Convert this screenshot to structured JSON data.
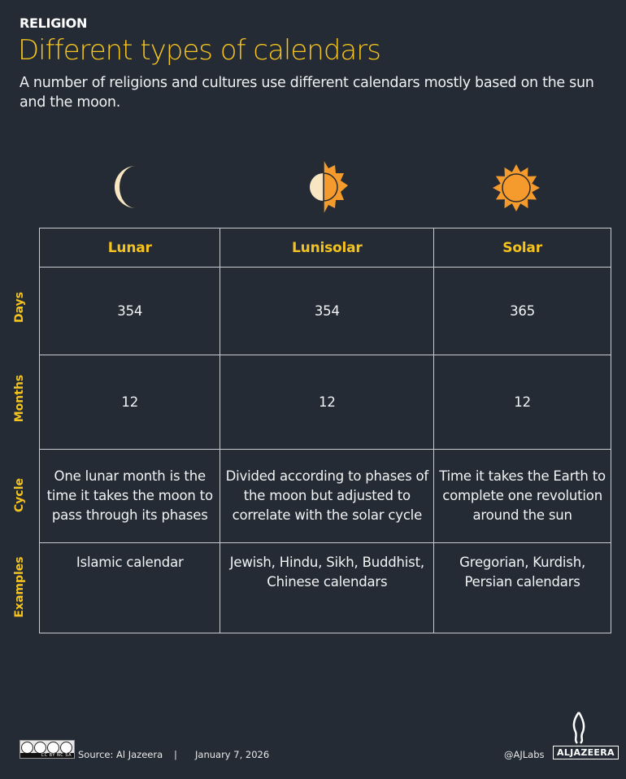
{
  "header": {
    "kicker": "RELIGION",
    "title": "Different types of calendars",
    "subtitle": "A number of religions and cultures use different calendars mostly based on the sun and the moon."
  },
  "colors": {
    "background": "#252b34",
    "accent": "#f4c31f",
    "sun": "#f59b2d",
    "moon": "#f8e6c2"
  },
  "table": {
    "columns": [
      "Lunar",
      "Lunisolar",
      "Solar"
    ],
    "column_icons": [
      "crescent-moon-icon",
      "half-moon-half-sun-icon",
      "sun-icon"
    ],
    "row_labels": [
      "Days",
      "Months",
      "Cycle",
      "Examples"
    ],
    "rows": [
      [
        "354",
        "354",
        "365"
      ],
      [
        "12",
        "12",
        "12"
      ],
      [
        "One lunar month is the time it takes the moon to pass through its phases",
        "Divided according to phases of the moon but adjusted to correlate with the solar cycle",
        "Time it takes the Earth to complete one revolution around the sun"
      ],
      [
        "Islamic calendar",
        "Jewish, Hindu, Sikh, Buddhist, Chinese calendars",
        "Gregorian, Kurdish, Persian calendars"
      ]
    ]
  },
  "footer": {
    "license": "CC BY NC SA",
    "source": "Source:  Al Jazeera",
    "separator": "|",
    "date": "January 7, 2026",
    "handle": "@AJLabs",
    "logo": "ALJAZEERA"
  }
}
